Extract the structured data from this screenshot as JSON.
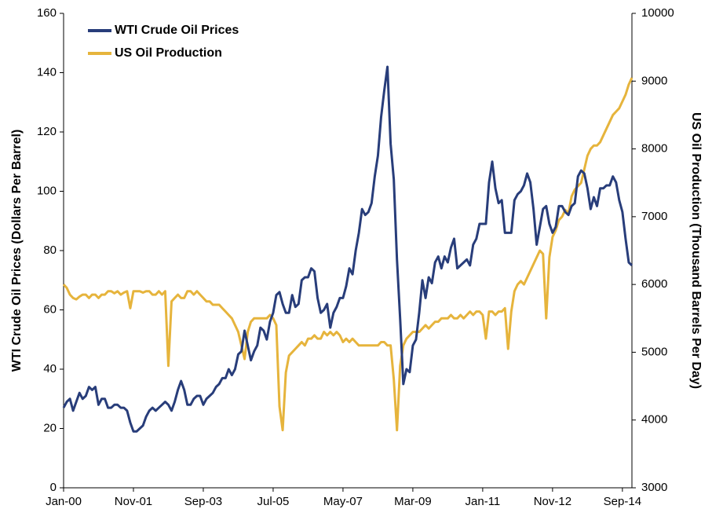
{
  "chart_data": {
    "type": "line",
    "y_label": "WTI Crude Oil Prices (Dollars Per Barrel)",
    "y2_label": "US Oil Production (Thousand Barrels Per Day)",
    "ylim": [
      0,
      160
    ],
    "yticks": [
      0,
      20,
      40,
      60,
      80,
      100,
      120,
      140,
      160
    ],
    "y2lim": [
      3000,
      10000
    ],
    "y2ticks": [
      3000,
      4000,
      5000,
      6000,
      7000,
      8000,
      9000,
      10000
    ],
    "legend": "upper left",
    "categories": [
      "Jan-00",
      null,
      null,
      null,
      null,
      null,
      null,
      null,
      null,
      null,
      null,
      null,
      null,
      null,
      null,
      null,
      null,
      null,
      null,
      null,
      null,
      null,
      "Nov-01",
      null,
      null,
      null,
      null,
      null,
      null,
      null,
      null,
      null,
      null,
      null,
      null,
      null,
      null,
      null,
      null,
      null,
      null,
      null,
      null,
      null,
      "Sep-03",
      null,
      null,
      null,
      null,
      null,
      null,
      null,
      null,
      null,
      null,
      null,
      null,
      null,
      null,
      null,
      null,
      null,
      null,
      null,
      null,
      null,
      "Jul-05",
      null,
      null,
      null,
      null,
      null,
      null,
      null,
      null,
      null,
      null,
      null,
      null,
      null,
      null,
      null,
      null,
      null,
      null,
      null,
      null,
      null,
      "May-07",
      null,
      null,
      null,
      null,
      null,
      null,
      null,
      null,
      null,
      null,
      null,
      null,
      null,
      null,
      null,
      null,
      null,
      null,
      null,
      null,
      null,
      "Mar-09",
      null,
      null,
      null,
      null,
      null,
      null,
      null,
      null,
      null,
      null,
      null,
      null,
      null,
      null,
      null,
      null,
      null,
      null,
      null,
      null,
      null,
      "Jan-11",
      null,
      null,
      null,
      null,
      null,
      null,
      null,
      null,
      null,
      null,
      null,
      null,
      null,
      null,
      null,
      null,
      null,
      null,
      null,
      null,
      null,
      "Nov-12",
      null,
      null,
      null,
      null,
      null,
      null,
      null,
      null,
      null,
      null,
      null,
      null,
      null,
      null,
      null,
      null,
      null,
      null,
      null,
      null,
      null,
      "Sep-14",
      null,
      null,
      null
    ],
    "series": [
      {
        "name": "WTI Crude Oil Prices",
        "color": "#283d7a",
        "values": [
          27,
          29,
          30,
          26,
          29,
          32,
          30,
          31,
          34,
          33,
          34,
          28,
          30,
          30,
          27,
          27,
          28,
          28,
          27,
          27,
          26,
          22,
          19,
          19,
          20,
          21,
          24,
          26,
          27,
          26,
          27,
          28,
          29,
          28,
          26,
          29,
          33,
          36,
          33,
          28,
          28,
          30,
          31,
          31,
          28,
          30,
          31,
          32,
          34,
          35,
          37,
          37,
          40,
          38,
          40,
          45,
          46,
          53,
          48,
          43,
          46,
          48,
          54,
          53,
          50,
          56,
          59,
          65,
          66,
          62,
          59,
          59,
          65,
          61,
          62,
          70,
          71,
          71,
          74,
          73,
          64,
          59,
          60,
          62,
          54,
          59,
          61,
          64,
          64,
          68,
          74,
          72,
          80,
          86,
          94,
          92,
          93,
          96,
          105,
          112,
          125,
          134,
          142,
          116,
          104,
          77,
          57,
          35,
          40,
          39,
          48,
          50,
          59,
          70,
          64,
          71,
          69,
          76,
          78,
          74,
          78,
          76,
          81,
          84,
          74,
          75,
          76,
          77,
          75,
          82,
          84,
          89,
          89,
          89,
          103,
          110,
          101,
          96,
          97,
          86,
          86,
          86,
          97,
          99,
          100,
          102,
          106,
          103,
          94,
          82,
          88,
          94,
          95,
          89,
          86,
          88,
          95,
          95,
          93,
          92,
          95,
          96,
          105,
          107,
          106,
          101,
          94,
          98,
          95,
          101,
          101,
          102,
          102,
          105,
          103,
          97,
          93,
          84,
          76,
          75
        ]
      },
      {
        "name": "US Oil Production",
        "color": "#e6b43c",
        "axis": "y2",
        "values": [
          6000,
          5950,
          5850,
          5800,
          5780,
          5820,
          5850,
          5850,
          5800,
          5850,
          5850,
          5800,
          5850,
          5850,
          5900,
          5900,
          5870,
          5900,
          5850,
          5880,
          5900,
          5650,
          5900,
          5900,
          5900,
          5880,
          5900,
          5900,
          5850,
          5850,
          5900,
          5850,
          5900,
          4800,
          5750,
          5800,
          5850,
          5800,
          5800,
          5900,
          5900,
          5850,
          5900,
          5850,
          5800,
          5750,
          5750,
          5700,
          5700,
          5700,
          5650,
          5600,
          5550,
          5500,
          5400,
          5300,
          5100,
          4900,
          5300,
          5450,
          5500,
          5500,
          5500,
          5500,
          5500,
          5550,
          5500,
          5400,
          4200,
          3850,
          4700,
          4950,
          5000,
          5050,
          5100,
          5150,
          5100,
          5200,
          5200,
          5250,
          5200,
          5200,
          5300,
          5250,
          5300,
          5250,
          5300,
          5250,
          5150,
          5200,
          5150,
          5200,
          5150,
          5100,
          5100,
          5100,
          5100,
          5100,
          5100,
          5100,
          5150,
          5150,
          5100,
          5100,
          4600,
          3850,
          4800,
          5100,
          5200,
          5250,
          5300,
          5300,
          5300,
          5350,
          5400,
          5350,
          5400,
          5450,
          5450,
          5500,
          5500,
          5500,
          5550,
          5500,
          5500,
          5550,
          5500,
          5550,
          5600,
          5550,
          5600,
          5600,
          5550,
          5200,
          5600,
          5600,
          5550,
          5600,
          5600,
          5650,
          5050,
          5600,
          5900,
          6000,
          6050,
          6000,
          6100,
          6200,
          6300,
          6400,
          6500,
          6450,
          5500,
          6400,
          6700,
          6800,
          6950,
          7000,
          7100,
          7050,
          7300,
          7400,
          7450,
          7500,
          7700,
          7900,
          8000,
          8050,
          8050,
          8100,
          8200,
          8300,
          8400,
          8500,
          8550,
          8600,
          8700,
          8800,
          8950,
          9050
        ]
      }
    ]
  }
}
